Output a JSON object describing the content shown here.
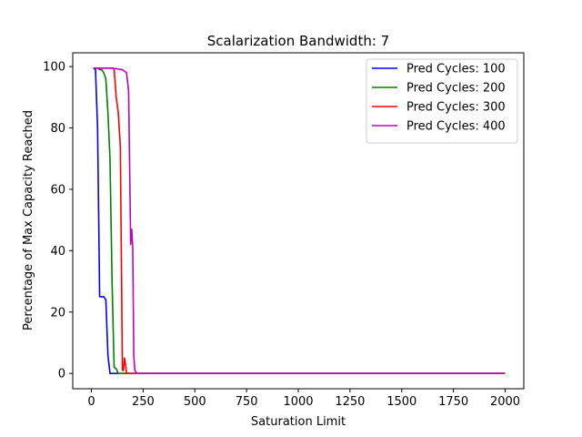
{
  "chart_data": {
    "type": "line",
    "title": "Scalarization Bandwidth: 7",
    "xlabel": "Saturation Limit",
    "ylabel": "Percentage of Max Capacity Reached",
    "xlim": [
      -90,
      2090
    ],
    "ylim": [
      -5,
      104.5
    ],
    "xticks": [
      0,
      250,
      500,
      750,
      1000,
      1250,
      1500,
      1750,
      2000
    ],
    "yticks": [
      0,
      20,
      40,
      60,
      80,
      100
    ],
    "grid": false,
    "legend_position": "upper right",
    "series": [
      {
        "name": "Pred Cycles: 100",
        "color": "#0000ff",
        "x": [
          10,
          20,
          30,
          40,
          50,
          60,
          70,
          80,
          90,
          100,
          110,
          120,
          150,
          200,
          300,
          500,
          1000,
          1500,
          2000
        ],
        "y": [
          99.5,
          99,
          80,
          25,
          25,
          25,
          24,
          6,
          0,
          0,
          0,
          0,
          0,
          0,
          0,
          0,
          0,
          0,
          0
        ]
      },
      {
        "name": "Pred Cycles: 200",
        "color": "#008000",
        "x": [
          10,
          20,
          30,
          40,
          50,
          60,
          70,
          80,
          90,
          100,
          110,
          120,
          130,
          140,
          150,
          200,
          300,
          500,
          1000,
          1500,
          2000
        ],
        "y": [
          99.5,
          99.5,
          99.5,
          99,
          99,
          98,
          96,
          85,
          70,
          30,
          2,
          1.5,
          0,
          0,
          0,
          0,
          0,
          0,
          0,
          0,
          0
        ]
      },
      {
        "name": "Pred Cycles: 300",
        "color": "#ff0000",
        "x": [
          10,
          50,
          100,
          110,
          120,
          130,
          140,
          150,
          155,
          160,
          165,
          170,
          180,
          200,
          300,
          500,
          1000,
          1500,
          2000
        ],
        "y": [
          99.5,
          99.5,
          99.5,
          99.2,
          90,
          85,
          74,
          1,
          1,
          5,
          3,
          0,
          0,
          0,
          0,
          0,
          0,
          0,
          0
        ]
      },
      {
        "name": "Pred Cycles: 400",
        "color": "#bf00bf",
        "x": [
          10,
          50,
          100,
          150,
          170,
          180,
          190,
          195,
          200,
          205,
          210,
          220,
          250,
          300,
          500,
          1000,
          1500,
          2000
        ],
        "y": [
          99.5,
          99.5,
          99.5,
          99,
          98,
          92,
          42,
          47,
          41,
          6,
          1,
          0,
          0,
          0,
          0,
          0,
          0,
          0
        ]
      }
    ]
  }
}
